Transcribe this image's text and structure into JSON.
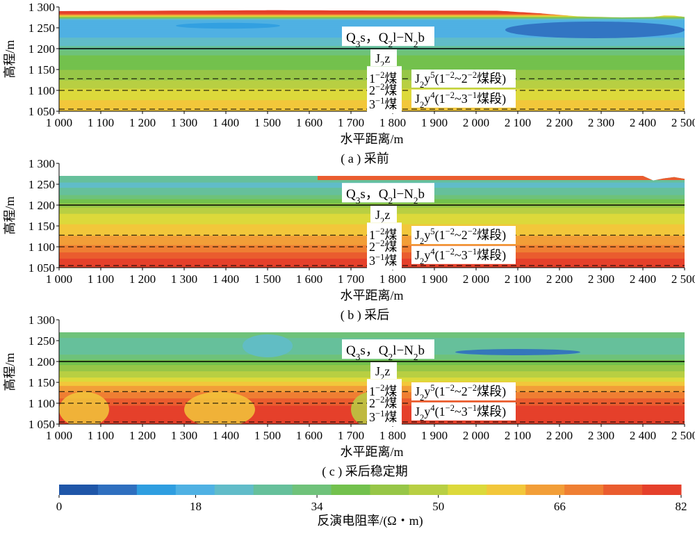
{
  "chart_data": {
    "type": "heatmap",
    "panels": [
      {
        "id": "a",
        "caption": "( a ) 采前",
        "xlabel": "水平距离/m",
        "ylabel": "高程/m",
        "xlim": [
          1000,
          2500
        ],
        "ylim": [
          1050,
          1300
        ],
        "x_ticks": [
          "1 000",
          "1 100",
          "1 200",
          "1 300",
          "1 400",
          "1 500",
          "1 600",
          "1 700",
          "1 800",
          "1 900",
          "2 000",
          "2 100",
          "2 200",
          "2 300",
          "2 400",
          "2 500"
        ],
        "y_ticks": [
          "1 050",
          "1 100",
          "1 150",
          "1 200",
          "1 250",
          "1 300"
        ],
        "surface_elevation": [
          [
            1000,
            1290
          ],
          [
            1500,
            1292
          ],
          [
            2050,
            1291
          ],
          [
            2150,
            1285
          ],
          [
            2250,
            1277
          ],
          [
            2350,
            1275
          ],
          [
            2430,
            1276
          ],
          [
            2460,
            1281
          ],
          [
            2500,
            1276
          ]
        ],
        "resistivity_profile": [
          [
            1050,
            60
          ],
          [
            1080,
            56
          ],
          [
            1110,
            50
          ],
          [
            1140,
            42
          ],
          [
            1160,
            40
          ],
          [
            1190,
            35
          ],
          [
            1200,
            30
          ],
          [
            1215,
            22
          ],
          [
            1230,
            20
          ],
          [
            1250,
            18
          ],
          [
            1270,
            20
          ],
          [
            1285,
            82
          ]
        ],
        "low_anomalies": [
          {
            "x": [
              1280,
              1530
            ],
            "y": [
              1248,
              1262
            ],
            "value": 12
          },
          {
            "x": [
              2070,
              2500
            ],
            "y": [
              1225,
              1265
            ],
            "value": 8
          }
        ]
      },
      {
        "id": "b",
        "caption": "( b ) 采后",
        "xlabel": "水平距离/m",
        "ylabel": "高程/m",
        "xlim": [
          1000,
          2500
        ],
        "ylim": [
          1050,
          1300
        ],
        "x_ticks": [
          "1 000",
          "1 100",
          "1 200",
          "1 300",
          "1 400",
          "1 500",
          "1 600",
          "1 700",
          "1 800",
          "1 900",
          "2 000",
          "2 100",
          "2 200",
          "2 300",
          "2 400",
          "2 500"
        ],
        "y_ticks": [
          "1 050",
          "1 100",
          "1 150",
          "1 200",
          "1 250",
          "1 300"
        ],
        "surface_elevation": [
          [
            1000,
            1270
          ],
          [
            2400,
            1270
          ],
          [
            2420,
            1258
          ],
          [
            2440,
            1262
          ],
          [
            2470,
            1268
          ],
          [
            2500,
            1263
          ]
        ],
        "resistivity_profile": [
          [
            1050,
            82
          ],
          [
            1075,
            76
          ],
          [
            1100,
            68
          ],
          [
            1125,
            62
          ],
          [
            1150,
            57
          ],
          [
            1170,
            54
          ],
          [
            1190,
            48
          ],
          [
            1200,
            44
          ],
          [
            1215,
            36
          ],
          [
            1230,
            28
          ],
          [
            1250,
            24
          ],
          [
            1265,
            30
          ]
        ],
        "top_anomalies": [
          {
            "x": [
              1620,
              2500
            ],
            "y": [
              1260,
              1270
            ],
            "value": 76
          }
        ]
      },
      {
        "id": "c",
        "caption": "( c ) 采后稳定期",
        "xlabel": "水平距离/m",
        "ylabel": "高程/m",
        "xlim": [
          1000,
          2500
        ],
        "ylim": [
          1050,
          1300
        ],
        "x_ticks": [
          "1 000",
          "1 100",
          "1 200",
          "1 300",
          "1 400",
          "1 500",
          "1 600",
          "1 700",
          "1 800",
          "1 900",
          "2 000",
          "2 100",
          "2 200",
          "2 300",
          "2 400",
          "2 500"
        ],
        "y_ticks": [
          "1 050",
          "1 100",
          "1 150",
          "1 200",
          "1 250",
          "1 300"
        ],
        "surface_elevation": [
          [
            1000,
            1270
          ],
          [
            2500,
            1270
          ]
        ],
        "resistivity_profile": [
          [
            1050,
            80
          ],
          [
            1090,
            78
          ],
          [
            1120,
            70
          ],
          [
            1150,
            58
          ],
          [
            1170,
            48
          ],
          [
            1190,
            42
          ],
          [
            1200,
            38
          ],
          [
            1220,
            30
          ],
          [
            1245,
            26
          ],
          [
            1265,
            34
          ]
        ],
        "bottom_lows": [
          {
            "x": [
              1000,
              1120
            ],
            "value": 60
          },
          {
            "x": [
              1300,
              1470
            ],
            "value": 58
          },
          {
            "x": [
              1700,
              1800
            ],
            "value": 50
          }
        ],
        "low_anomalies": [
          {
            "x": [
              1440,
              1560
            ],
            "y": [
              1210,
              1265
            ],
            "value": 24
          },
          {
            "x": [
              1950,
              2250
            ],
            "y": [
              1215,
              1230
            ],
            "value": 8
          }
        ]
      }
    ],
    "strata_labels": {
      "upper": [
        "Q",
        "3",
        "s，Q",
        "2",
        "l",
        "−N",
        "2",
        "b"
      ],
      "j2z": [
        "J",
        "2",
        "z"
      ],
      "seams": [
        "1",
        "−2",
        "煤",
        "2",
        "−2",
        "煤",
        "3",
        "−1",
        "煤"
      ],
      "j2y5": [
        "J",
        "2",
        "y",
        "5",
        "(1",
        "−2",
        "~2",
        "−2",
        "煤段)"
      ],
      "j2y4": [
        "J",
        "2",
        "y",
        "4",
        "(1",
        "−2",
        "~3",
        "−1",
        "煤段)"
      ]
    },
    "boundary_elevation": 1200,
    "coal_seam_elevations": [
      1128,
      1100,
      1055
    ],
    "colorbar": {
      "label": "反演电阻率/(Ω・m)",
      "min": 0,
      "max": 82,
      "ticks": [
        "0",
        "18",
        "34",
        "50",
        "66",
        "82"
      ],
      "tick_values": [
        0,
        18,
        34,
        50,
        66,
        82
      ],
      "colors": [
        "#1f56a8",
        "#2f6fbf",
        "#2f9ee0",
        "#4fb1e3",
        "#61bcc9",
        "#66c09b",
        "#6fc27a",
        "#73c14d",
        "#97c647",
        "#b8cf43",
        "#dcd93b",
        "#f2c73b",
        "#f29e38",
        "#ef7f33",
        "#ea5c2f",
        "#e5402b"
      ]
    }
  }
}
